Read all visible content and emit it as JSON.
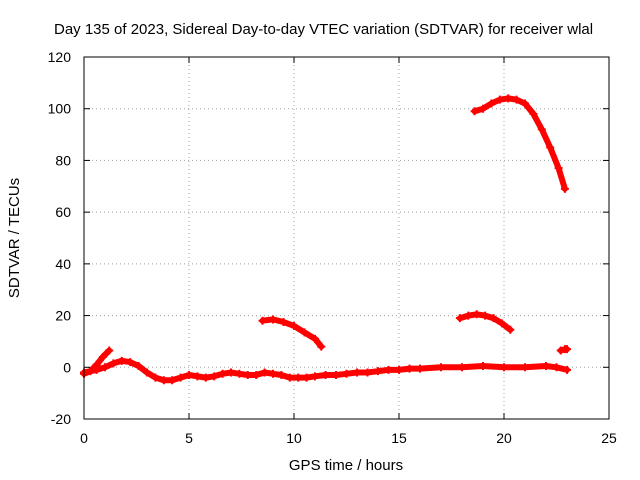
{
  "chart_data": {
    "type": "line",
    "title": "Day 135 of 2023, Sidereal Day-to-day VTEC variation (SDTVAR) for receiver wlal",
    "xlabel": "GPS time / hours",
    "ylabel": "SDTVAR / TECUs",
    "xlim": [
      0,
      25
    ],
    "ylim": [
      -20,
      120
    ],
    "xticks": [
      0,
      5,
      10,
      15,
      20,
      25
    ],
    "yticks": [
      -20,
      0,
      20,
      40,
      60,
      80,
      100,
      120
    ],
    "grid": true,
    "series_color": "#ff0000",
    "series": [
      {
        "name": "segment-1",
        "points": [
          [
            0,
            -2
          ],
          [
            0.3,
            -1.5
          ],
          [
            0.6,
            -1
          ],
          [
            1.0,
            0
          ],
          [
            1.4,
            1.5
          ],
          [
            1.8,
            2.5
          ],
          [
            2.2,
            2
          ],
          [
            2.6,
            0.5
          ],
          [
            3.0,
            -2
          ],
          [
            3.4,
            -4
          ],
          [
            3.8,
            -5
          ],
          [
            4.2,
            -5
          ],
          [
            4.6,
            -4
          ],
          [
            5.0,
            -3
          ],
          [
            5.4,
            -3.5
          ],
          [
            5.8,
            -4
          ],
          [
            6.2,
            -3.5
          ],
          [
            6.6,
            -2.5
          ],
          [
            7.0,
            -2
          ],
          [
            7.4,
            -2.5
          ],
          [
            7.8,
            -3
          ],
          [
            8.2,
            -3
          ],
          [
            8.6,
            -2
          ],
          [
            9.0,
            -2.5
          ],
          [
            9.4,
            -3
          ],
          [
            9.8,
            -4
          ],
          [
            10.2,
            -4
          ],
          [
            10.6,
            -4
          ],
          [
            11.0,
            -3.5
          ],
          [
            11.5,
            -3
          ],
          [
            12.0,
            -3
          ],
          [
            12.5,
            -2.5
          ],
          [
            13.0,
            -2
          ],
          [
            13.5,
            -2
          ],
          [
            14.0,
            -1.5
          ],
          [
            14.5,
            -1
          ],
          [
            15.0,
            -1
          ],
          [
            15.5,
            -0.5
          ],
          [
            16.0,
            -0.5
          ],
          [
            17.0,
            0
          ],
          [
            18.0,
            0
          ],
          [
            19.0,
            0.5
          ],
          [
            20.0,
            0
          ],
          [
            21.0,
            0
          ],
          [
            22.0,
            0.5
          ],
          [
            22.5,
            0
          ],
          [
            23.0,
            -1
          ]
        ]
      },
      {
        "name": "segment-2",
        "points": [
          [
            0,
            -2.5
          ],
          [
            0.3,
            -1.5
          ],
          [
            0.6,
            1
          ],
          [
            0.9,
            4
          ],
          [
            1.2,
            6.5
          ]
        ]
      },
      {
        "name": "segment-3",
        "points": [
          [
            8.5,
            18
          ],
          [
            9.0,
            18.5
          ],
          [
            9.5,
            17.5
          ],
          [
            10.0,
            16
          ],
          [
            10.5,
            13.5
          ],
          [
            11.0,
            11
          ],
          [
            11.3,
            8
          ]
        ]
      },
      {
        "name": "segment-4",
        "points": [
          [
            17.9,
            19
          ],
          [
            18.3,
            20
          ],
          [
            18.7,
            20.5
          ],
          [
            19.1,
            20
          ],
          [
            19.5,
            19
          ],
          [
            19.9,
            17
          ],
          [
            20.3,
            14.5
          ]
        ]
      },
      {
        "name": "segment-5",
        "points": [
          [
            18.6,
            99
          ],
          [
            19.0,
            100
          ],
          [
            19.4,
            102
          ],
          [
            19.8,
            103.5
          ],
          [
            20.2,
            104
          ],
          [
            20.6,
            103.5
          ],
          [
            21.0,
            102
          ],
          [
            21.4,
            98
          ],
          [
            21.8,
            92
          ],
          [
            22.2,
            85
          ],
          [
            22.6,
            77
          ],
          [
            22.9,
            69
          ]
        ]
      },
      {
        "name": "segment-6",
        "points": [
          [
            22.7,
            6.5
          ],
          [
            22.9,
            7
          ],
          [
            23.0,
            7
          ]
        ]
      }
    ]
  }
}
